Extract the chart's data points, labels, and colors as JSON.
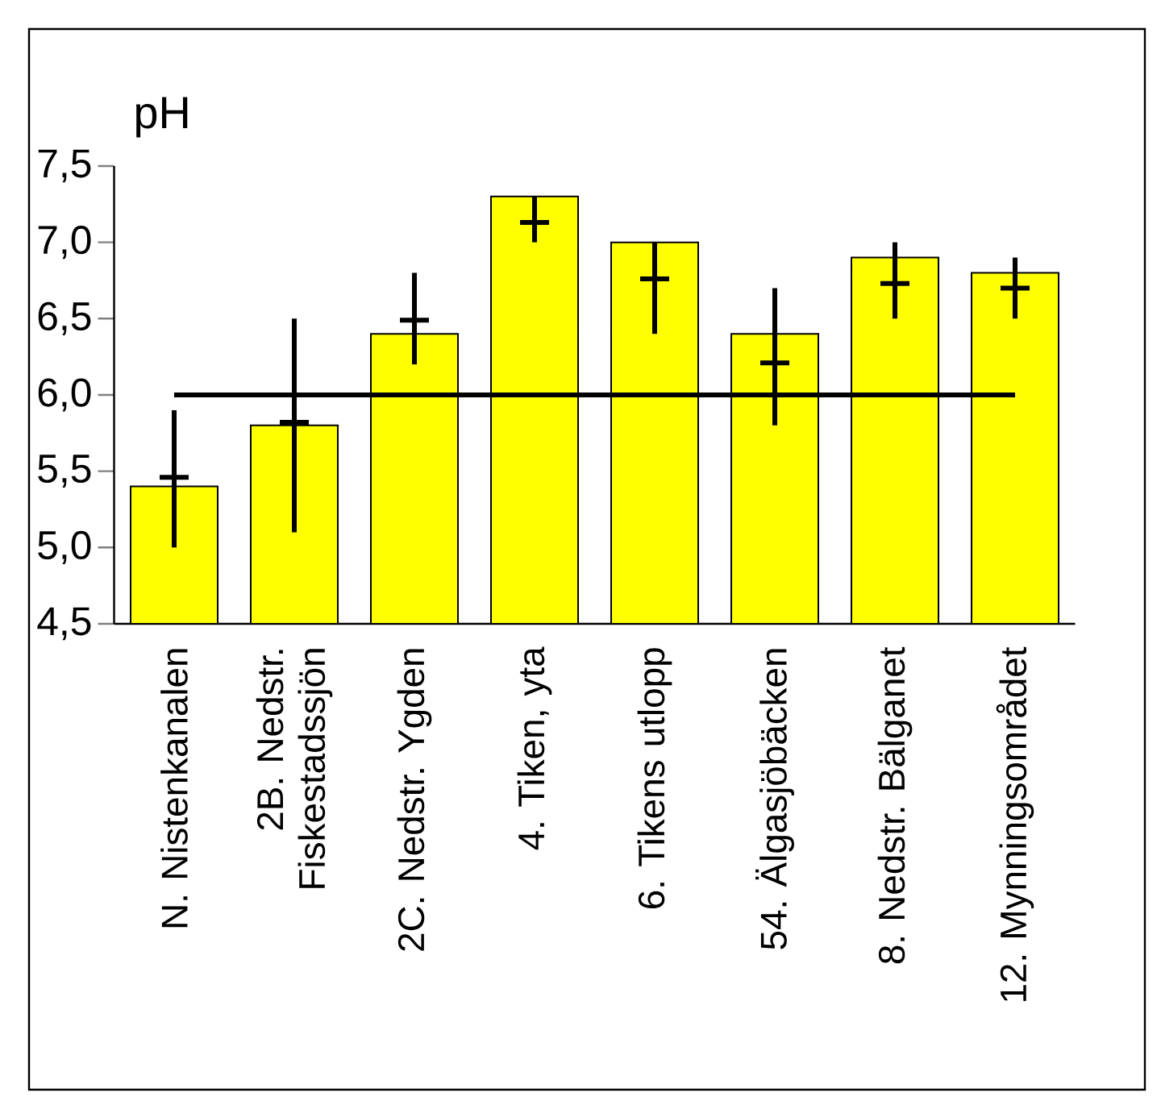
{
  "chart_data": {
    "type": "bar",
    "ylabel": "pH",
    "categories": [
      "N. Nistenkanalen",
      "2B. Nedstr. Fiskestadssjön",
      "2C. Nedstr. Ygden",
      "4. Tiken, yta",
      "6. Tikens utlopp",
      "54. Älgasjöbäcken",
      "8. Nedstr. Bälganet",
      "12. Mynningsområdet"
    ],
    "series": [
      {
        "color": "#ffff00",
        "values": [
          5.4,
          5.8,
          6.4,
          7.3,
          7.0,
          6.4,
          6.9,
          6.8
        ]
      },
      {
        "type": "scatter",
        "color": "#000000",
        "x": [
          "N. Nistenkanalen",
          "2B. Nedstr. Fiskestadssjön",
          "2C. Nedstr. Ygden",
          "4. Tiken, yta",
          "6. Tikens utlopp",
          "54. Älgasjöbäcken",
          "8. Nedstr. Bälganet",
          "12. Mynningsområdet"
        ],
        "values": [
          5.46,
          5.82,
          6.49,
          7.13,
          6.76,
          6.21,
          6.73,
          6.7
        ],
        "errors": [
          [
            5.0,
            5.9
          ],
          [
            5.1,
            6.5
          ],
          [
            6.2,
            6.8
          ],
          [
            7.0,
            7.3
          ],
          [
            6.4,
            7.0
          ],
          [
            5.8,
            6.7
          ],
          [
            6.5,
            7.0
          ],
          [
            6.5,
            6.9
          ]
        ]
      }
    ],
    "marker": "cross",
    "ylim": [
      4.5,
      7.5
    ],
    "yticks": [
      {
        "value": 4.5,
        "label": "4,5"
      },
      {
        "value": 5.0,
        "label": "5,0"
      },
      {
        "value": 5.5,
        "label": "5,5"
      },
      {
        "value": 6.0,
        "label": "6,0"
      },
      {
        "value": 6.5,
        "label": "6,5"
      },
      {
        "value": 7.0,
        "label": "7,0"
      },
      {
        "value": 7.5,
        "label": "7,5"
      }
    ],
    "ref_lines": [
      {
        "axis": "y",
        "value": 6.0,
        "color": "#000000"
      }
    ]
  }
}
